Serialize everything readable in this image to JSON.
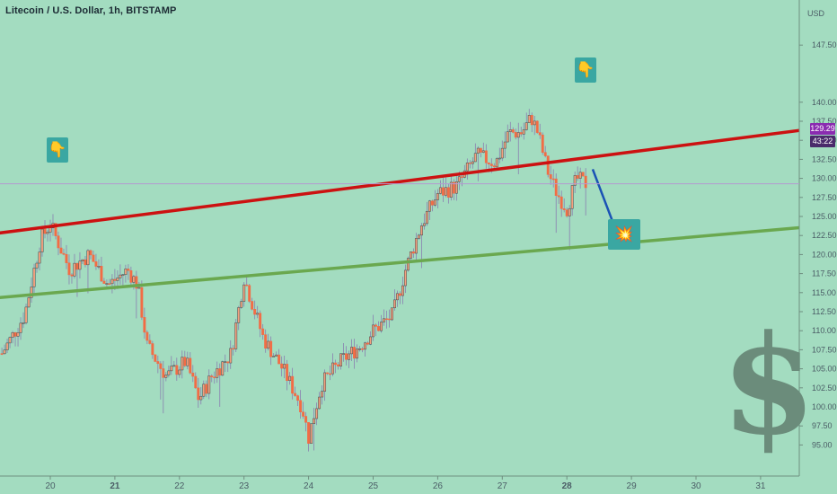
{
  "header": {
    "title": "Litecoin / U.S. Dollar, 1h, BITSTAMP",
    "currency": "USD"
  },
  "badges": {
    "last_price": "129.29",
    "countdown": "43:22"
  },
  "colors": {
    "background": "#a3dcc0",
    "candle_up": "#3d4a4f",
    "candle_down": "#f26c45",
    "resistance_line": "#cc1111",
    "support_line": "#6aa84f",
    "forecast_arrow": "#1a52b5",
    "price_badge": "#8a2bb0",
    "countdown_badge": "#4a2b6b"
  },
  "chart_data": {
    "type": "candlestick",
    "title": "Litecoin / U.S. Dollar, 1h, BITSTAMP",
    "x_ticks": [
      "20",
      "21",
      "22",
      "23",
      "24",
      "25",
      "26",
      "27",
      "28",
      "29",
      "30",
      "31"
    ],
    "y_ticks": [
      "95.00",
      "97.50",
      "100.00",
      "102.50",
      "105.00",
      "107.50",
      "110.00",
      "112.50",
      "115.00",
      "117.50",
      "120.00",
      "122.50",
      "125.00",
      "127.50",
      "130.00",
      "132.50",
      "135.00",
      "137.50",
      "140.00",
      "147.50"
    ],
    "ylim": [
      94,
      147.5
    ],
    "last_price": 129.29,
    "price_path": [
      [
        19.25,
        107
      ],
      [
        19.6,
        112
      ],
      [
        19.85,
        122
      ],
      [
        20.0,
        124
      ],
      [
        20.3,
        118
      ],
      [
        20.6,
        120
      ],
      [
        20.9,
        116
      ],
      [
        21.2,
        118
      ],
      [
        21.35,
        116
      ],
      [
        21.5,
        108
      ],
      [
        21.8,
        104
      ],
      [
        22.1,
        106
      ],
      [
        22.3,
        101
      ],
      [
        22.5,
        104
      ],
      [
        22.8,
        107
      ],
      [
        23.0,
        117
      ],
      [
        23.3,
        109
      ],
      [
        23.6,
        105
      ],
      [
        23.9,
        100
      ],
      [
        24.0,
        96
      ],
      [
        24.2,
        103
      ],
      [
        24.5,
        106
      ],
      [
        24.8,
        108
      ],
      [
        25.0,
        110
      ],
      [
        25.3,
        112
      ],
      [
        25.5,
        118
      ],
      [
        25.75,
        124
      ],
      [
        26.0,
        128
      ],
      [
        26.3,
        129
      ],
      [
        26.6,
        133
      ],
      [
        26.9,
        132
      ],
      [
        27.1,
        136
      ],
      [
        27.3,
        136
      ],
      [
        27.45,
        138
      ],
      [
        27.55,
        136
      ],
      [
        27.7,
        131
      ],
      [
        27.85,
        128
      ],
      [
        28.0,
        126
      ],
      [
        28.15,
        130
      ],
      [
        28.3,
        129.29
      ]
    ],
    "annotations": {
      "resistance_line": {
        "x": [
          19.0,
          31.7
        ],
        "y": [
          122.6,
          136.4
        ]
      },
      "support_line": {
        "x": [
          19.0,
          31.7
        ],
        "y": [
          114.2,
          123.6
        ]
      },
      "forecast_arrow": {
        "x": [
          28.4,
          28.8
        ],
        "y": [
          131.2,
          122.3
        ]
      },
      "icons": [
        "pointing-down-icon",
        "pointing-down-icon",
        "explosion-icon",
        "dollar-sign-icon"
      ]
    }
  },
  "decor": {
    "dollar_glyph": "$",
    "pointer_glyph": "👇",
    "explosion_glyph": "💥"
  }
}
